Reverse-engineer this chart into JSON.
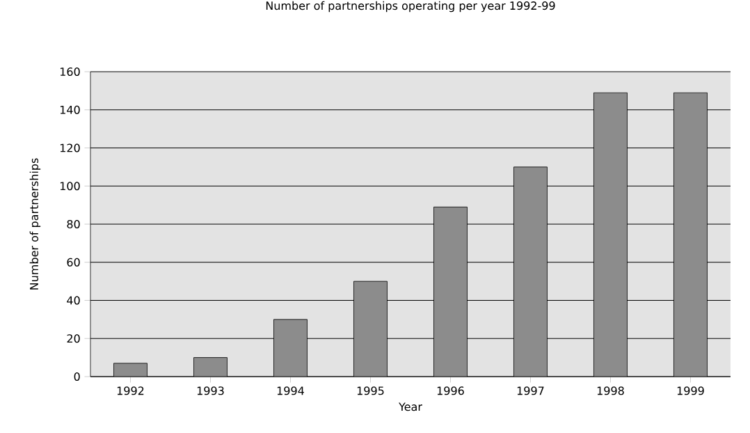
{
  "chart_data": {
    "type": "bar",
    "title": "Number of partnerships operating per year 1992-99",
    "xlabel": "Year",
    "ylabel": "Number of partnerships",
    "categories": [
      "1992",
      "1993",
      "1994",
      "1995",
      "1996",
      "1997",
      "1998",
      "1999"
    ],
    "values": [
      7,
      10,
      30,
      50,
      89,
      110,
      149,
      149
    ],
    "color": "#8c8c8c",
    "ylim": [
      0,
      160
    ],
    "yticks": [
      0,
      20,
      40,
      60,
      80,
      100,
      120,
      140,
      160
    ],
    "grid": "y"
  }
}
